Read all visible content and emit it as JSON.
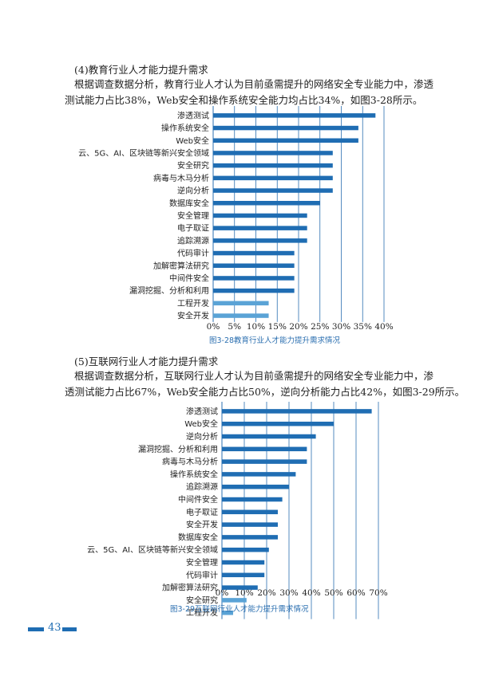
{
  "section1": {
    "heading": "(4)教育行业人才能力提升需求",
    "para_lines": [
      "根据调查数据分析，教育行业人才认为目前亟需提升的网络安全专业能力中，渗透",
      "测试能力占比38%，Web安全和操作系统安全能力均占比34%，如图3-28所示。"
    ]
  },
  "section2": {
    "heading": "(5)互联网行业人才能力提升需求",
    "para_lines": [
      "根据调查数据分析，互联网行业人才认为目前亟需提升的网络安全专业能力中，渗",
      "透测试能力占比67%，Web安全能力占比50%，逆向分析能力占比42%，如图3-29所示。"
    ]
  },
  "colors": {
    "bar_dark": "#1f6db3",
    "bar_light": "#5aa3d6",
    "gridline": "#2b6fb0",
    "caption": "#2b6fb0"
  },
  "chart_data": [
    {
      "type": "bar",
      "orientation": "horizontal",
      "title": "图3-28教育行业人才能力提升需求情况",
      "xlim": [
        0,
        40
      ],
      "x_ticks": [
        "0%",
        "5%",
        "10%",
        "15%",
        "20%",
        "25%",
        "30%",
        "35%",
        "40%"
      ],
      "grid": true,
      "categories": [
        "渗透测试",
        "操作系统安全",
        "Web安全",
        "云、5G、AI、区块链等新兴安全领域",
        "安全研究",
        "病毒与木马分析",
        "逆向分析",
        "数据库安全",
        "安全管理",
        "电子取证",
        "追踪溯源",
        "代码审计",
        "加解密算法研究",
        "中间件安全",
        "漏洞挖掘、分析和利用",
        "工程开发",
        "安全开发"
      ],
      "values": [
        38,
        34,
        34,
        28,
        28,
        28,
        28,
        25,
        22,
        22,
        22,
        19,
        19,
        19,
        19,
        13,
        13
      ],
      "bar_colors": [
        "dark",
        "dark",
        "dark",
        "dark",
        "dark",
        "dark",
        "dark",
        "dark",
        "dark",
        "dark",
        "dark",
        "dark",
        "dark",
        "dark",
        "dark",
        "light",
        "light"
      ]
    },
    {
      "type": "bar",
      "orientation": "horizontal",
      "title": "图3-29互联网行业人才能力提升需求情况",
      "xlim": [
        0,
        70
      ],
      "x_ticks": [
        "0%",
        "10%",
        "20%",
        "30%",
        "40%",
        "50%",
        "60%",
        "70%"
      ],
      "grid": true,
      "categories": [
        "渗透测试",
        "Web安全",
        "逆向分析",
        "漏洞挖掘、分析和利用",
        "病毒与木马分析",
        "操作系统安全",
        "追踪溯源",
        "中间件安全",
        "电子取证",
        "安全开发",
        "数据库安全",
        "云、5G、AI、区块链等新兴安全领域",
        "安全管理",
        "代码审计",
        "加解密算法研究",
        "安全研究",
        "工程开发"
      ],
      "values": [
        67,
        50,
        42,
        38,
        38,
        33,
        30,
        27,
        25,
        25,
        25,
        21,
        19,
        19,
        16,
        11,
        5
      ],
      "bar_colors": [
        "dark",
        "dark",
        "dark",
        "dark",
        "dark",
        "dark",
        "dark",
        "dark",
        "dark",
        "dark",
        "dark",
        "dark",
        "dark",
        "dark",
        "dark",
        "light",
        "light"
      ]
    }
  ],
  "footer": {
    "page_number": "43"
  }
}
